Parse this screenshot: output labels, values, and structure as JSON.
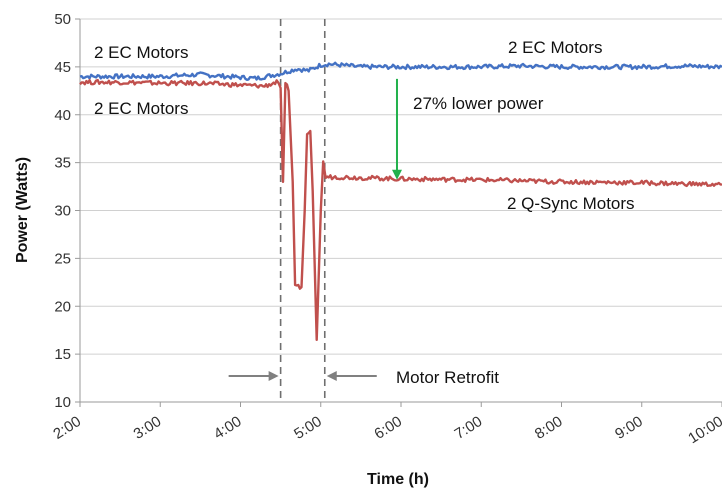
{
  "chart_data": {
    "type": "line",
    "title": "",
    "xlabel": "Time (h)",
    "ylabel": "Power (Watts)",
    "x_tick_labels": [
      "2:00",
      "3:00",
      "4:00",
      "5:00",
      "6:00",
      "7:00",
      "8:00",
      "9:00",
      "10:00"
    ],
    "x_ticks_hours": [
      2,
      3,
      4,
      5,
      6,
      7,
      8,
      9,
      10
    ],
    "xlim_hours": [
      2,
      10
    ],
    "ylim": [
      10,
      50
    ],
    "y_ticks": [
      10,
      15,
      20,
      25,
      30,
      35,
      40,
      45,
      50
    ],
    "grid": true,
    "legend": "none",
    "series": [
      {
        "color": "#4472c4",
        "points": [
          [
            2.0,
            44.0
          ],
          [
            2.5,
            44.0
          ],
          [
            3.0,
            44.0
          ],
          [
            3.5,
            44.2
          ],
          [
            4.0,
            43.9
          ],
          [
            4.2,
            43.8
          ],
          [
            4.5,
            44.3
          ],
          [
            4.7,
            44.8
          ],
          [
            4.85,
            44.6
          ],
          [
            5.0,
            45.2
          ],
          [
            5.1,
            45.3
          ],
          [
            5.5,
            45.0
          ],
          [
            6.0,
            45.0
          ],
          [
            6.5,
            45.0
          ],
          [
            7.0,
            45.0
          ],
          [
            7.5,
            45.1
          ],
          [
            8.0,
            45.0
          ],
          [
            8.5,
            45.0
          ],
          [
            9.0,
            45.0
          ],
          [
            9.5,
            45.1
          ],
          [
            10.0,
            45.0
          ]
        ]
      },
      {
        "color": "#c0504d",
        "points": [
          [
            2.0,
            43.4
          ],
          [
            2.5,
            43.4
          ],
          [
            3.0,
            43.3
          ],
          [
            3.5,
            43.3
          ],
          [
            4.0,
            43.1
          ],
          [
            4.3,
            43.0
          ],
          [
            4.45,
            43.4
          ],
          [
            4.5,
            42.8
          ],
          [
            4.53,
            33.0
          ],
          [
            4.56,
            43.4
          ],
          [
            4.6,
            42.5
          ],
          [
            4.65,
            33.0
          ],
          [
            4.68,
            22.0
          ],
          [
            4.76,
            22.0
          ],
          [
            4.8,
            30.0
          ],
          [
            4.83,
            38.0
          ],
          [
            4.87,
            38.3
          ],
          [
            4.9,
            32.0
          ],
          [
            4.95,
            16.5
          ],
          [
            5.0,
            30.0
          ],
          [
            5.03,
            35.0
          ],
          [
            5.06,
            33.5
          ],
          [
            5.2,
            33.5
          ],
          [
            6.0,
            33.3
          ],
          [
            7.0,
            33.2
          ],
          [
            8.0,
            33.0
          ],
          [
            9.0,
            32.9
          ],
          [
            10.0,
            32.7
          ]
        ]
      }
    ],
    "vertical_lines_hours": [
      4.5,
      5.05
    ],
    "annotations": {
      "ec_left_top": "2 EC Motors",
      "ec_left_bottom": "2 EC Motors",
      "ec_right": "2 EC Motors",
      "qsync": "2 Q-Sync Motors",
      "reduction": "27% lower power",
      "retrofit": "Motor  Retrofit"
    },
    "reduction_arrow": {
      "x_hours": 5.95,
      "from": 45.0,
      "to": 33.0,
      "color": "#22b14c"
    },
    "retrofit_arrow_color": "#808080",
    "gridline_color": "#d0d0d0",
    "axis_color": "#9a9a9a"
  }
}
